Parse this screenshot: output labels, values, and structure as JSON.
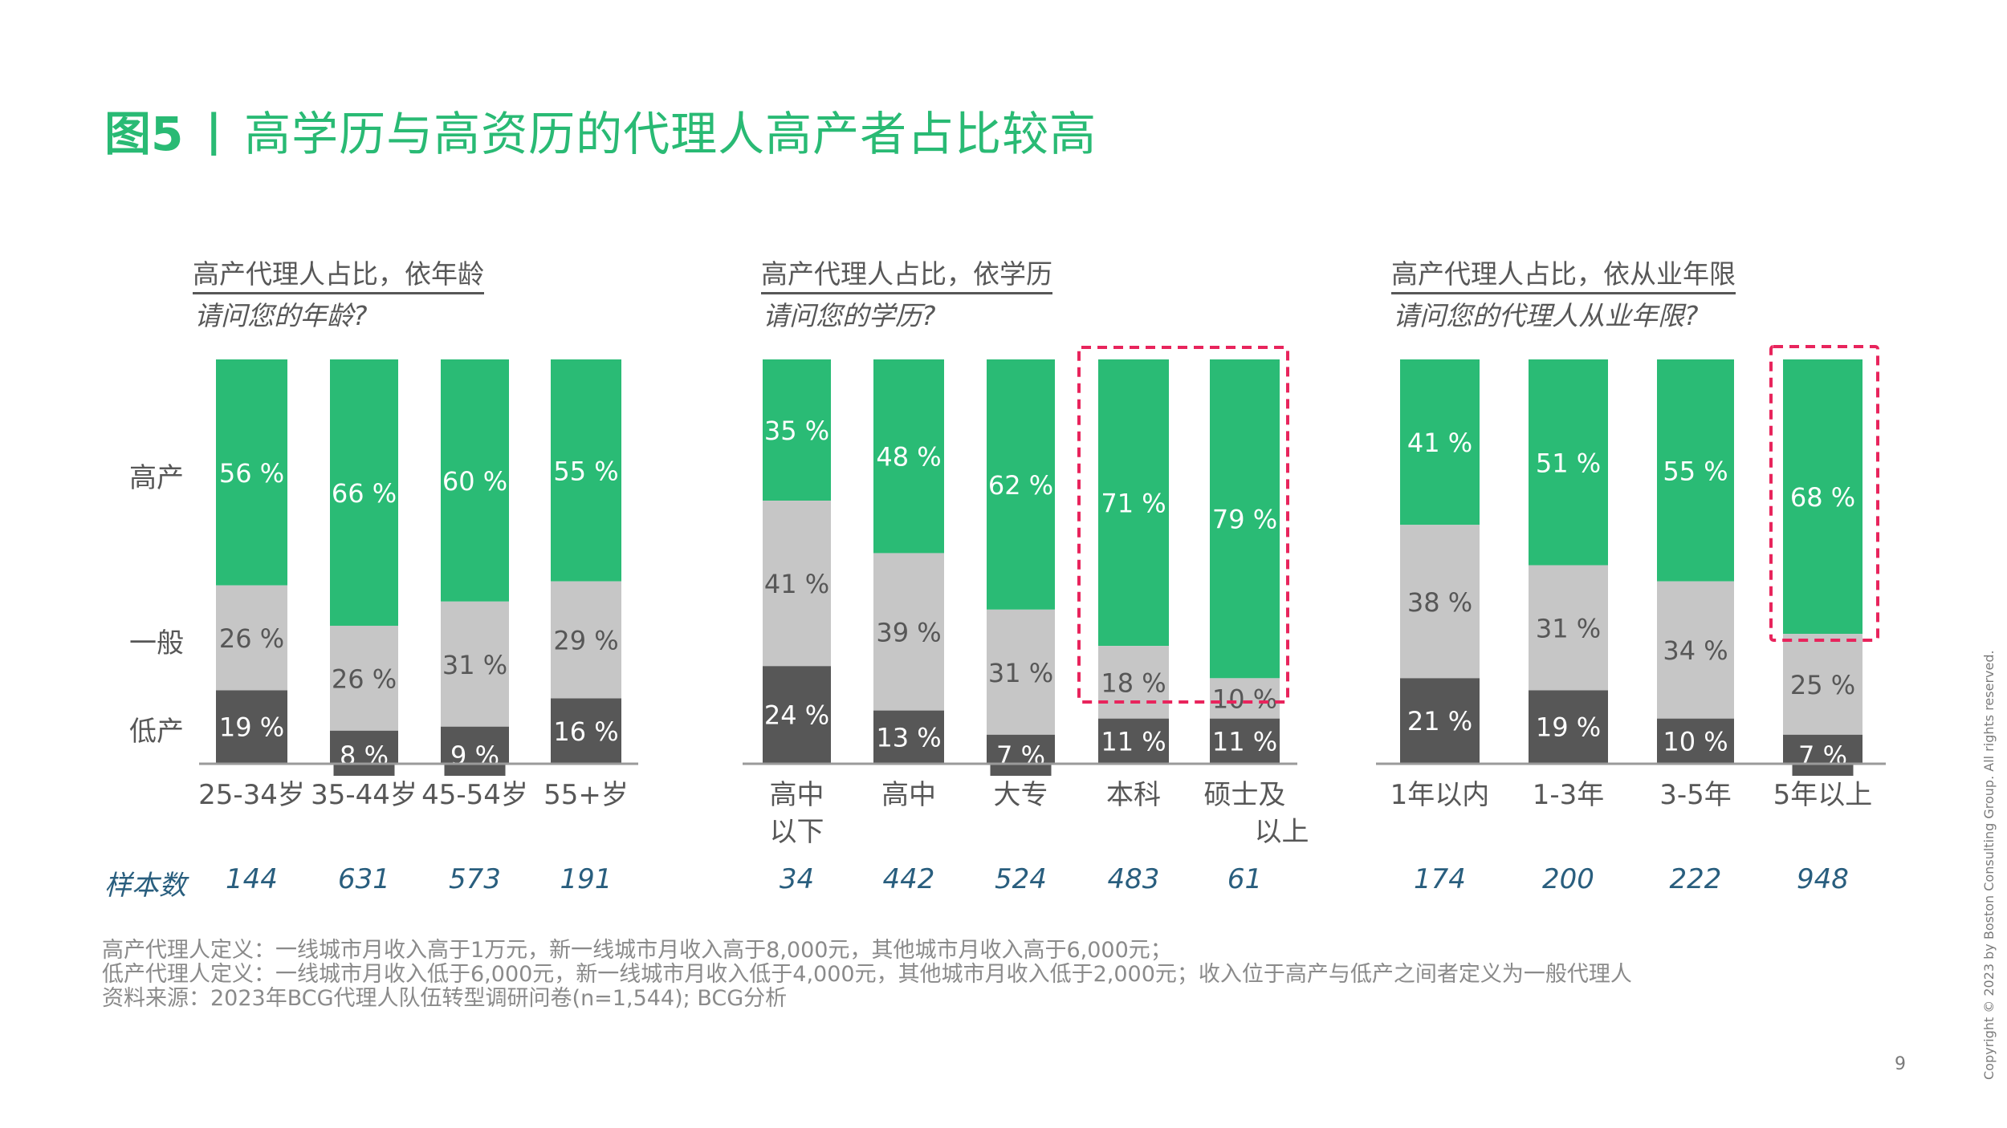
{
  "header": {
    "figure_label": "图5",
    "separator": "|",
    "title": "高学历与高资历的代理人高产者占比较高"
  },
  "colors": {
    "high": "#2ABB75",
    "medium": "#C6C6C6",
    "low": "#575757",
    "title_green": "#29BA74",
    "highlight_box": "#E8245C",
    "sample_text": "#295E7E"
  },
  "y_labels": [
    "高产",
    "一般",
    "低产"
  ],
  "sample_label": "样本数",
  "chart_data": [
    {
      "type": "bar",
      "stacked": true,
      "title": "高产代理人占比，依年龄",
      "subtitle": "请问您的年龄?",
      "categories": [
        "25-34岁",
        "35-44岁",
        "45-54岁",
        "55+岁"
      ],
      "series": [
        {
          "name": "高产",
          "values": [
            56,
            66,
            60,
            55
          ]
        },
        {
          "name": "一般",
          "values": [
            26,
            26,
            31,
            29
          ]
        },
        {
          "name": "低产",
          "values": [
            19,
            8,
            9,
            16
          ]
        }
      ],
      "sample_sizes": [
        "144",
        "631",
        "573",
        "191"
      ],
      "highlight": [],
      "ylim": [
        0,
        100
      ],
      "unit": "%"
    },
    {
      "type": "bar",
      "stacked": true,
      "title": "高产代理人占比，依学历",
      "subtitle": "请问您的学历?",
      "categories": [
        "高中\n以下",
        "高中",
        "大专",
        "本科",
        "硕士及\n以上"
      ],
      "series": [
        {
          "name": "高产",
          "values": [
            35,
            48,
            62,
            71,
            79
          ]
        },
        {
          "name": "一般",
          "values": [
            41,
            39,
            31,
            18,
            10
          ]
        },
        {
          "name": "低产",
          "values": [
            24,
            13,
            7,
            11,
            11
          ]
        }
      ],
      "sample_sizes": [
        "34",
        "442",
        "524",
        "483",
        "61"
      ],
      "highlight": [
        "本科",
        "硕士及\n以上"
      ],
      "ylim": [
        0,
        100
      ],
      "unit": "%"
    },
    {
      "type": "bar",
      "stacked": true,
      "title": "高产代理人占比，依从业年限",
      "subtitle": "请问您的代理人从业年限?",
      "categories": [
        "1年以内",
        "1-3年",
        "3-5年",
        "5年以上"
      ],
      "series": [
        {
          "name": "高产",
          "values": [
            41,
            51,
            55,
            68
          ]
        },
        {
          "name": "一般",
          "values": [
            38,
            31,
            34,
            25
          ]
        },
        {
          "name": "低产",
          "values": [
            21,
            19,
            10,
            7
          ]
        }
      ],
      "sample_sizes": [
        "174",
        "200",
        "222",
        "948"
      ],
      "highlight": [
        "5年以上"
      ],
      "ylim": [
        0,
        100
      ],
      "unit": "%"
    }
  ],
  "footnotes": [
    "高产代理人定义：一线城市月收入高于1万元，新一线城市月收入高于8,000元，其他城市月收入高于6,000元；",
    "低产代理人定义：一线城市月收入低于6,000元，新一线城市月收入低于4,000元，其他城市月收入低于2,000元；收入位于高产与低产之间者定义为一般代理人",
    "资料来源：2023年BCG代理人队伍转型调研问卷(n=1,544); BCG分析"
  ],
  "copyright": "Copyright © 2023 by Boston Consulting Group. All rights reserved.",
  "page_number": "9"
}
